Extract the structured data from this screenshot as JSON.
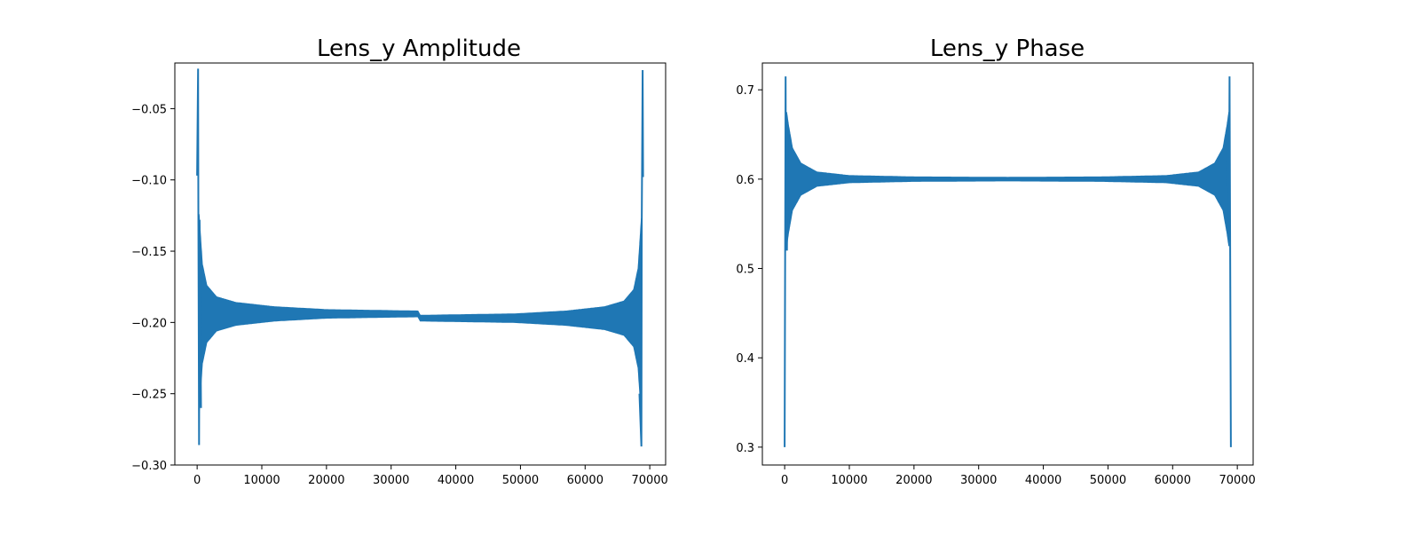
{
  "figure": {
    "panels": [
      {
        "title": "Lens_y Amplitude"
      },
      {
        "title": "Lens_y Phase"
      }
    ]
  },
  "colors": {
    "series": "#1f77b4",
    "axis": "#000000",
    "background": "#ffffff"
  },
  "chart_data": [
    {
      "type": "line",
      "title": "Lens_y Amplitude",
      "xlabel": "",
      "ylabel": "",
      "xlim": [
        -3450,
        72450
      ],
      "ylim": [
        -0.3,
        -0.018
      ],
      "x_ticks": [
        0,
        10000,
        20000,
        30000,
        40000,
        50000,
        60000,
        70000
      ],
      "x_tick_labels": [
        "0",
        "10000",
        "20000",
        "30000",
        "40000",
        "50000",
        "60000",
        "70000"
      ],
      "y_ticks": [
        -0.3,
        -0.25,
        -0.2,
        -0.15,
        -0.1,
        -0.05
      ],
      "y_tick_labels": [
        "−0.30",
        "−0.25",
        "−0.20",
        "−0.15",
        "−0.10",
        "−0.05"
      ],
      "grid": false,
      "legend": "none",
      "series": [
        {
          "x_range": [
            0,
            69000
          ],
          "center_left": -0.194,
          "center_right": -0.197,
          "step_at_x": 34500,
          "envelope_half_width": [
            [
              0,
              0.075
            ],
            [
              300,
              0.07
            ],
            [
              800,
              0.035
            ],
            [
              1500,
              0.02
            ],
            [
              3000,
              0.012
            ],
            [
              6000,
              0.008
            ],
            [
              12000,
              0.005
            ],
            [
              20000,
              0.003
            ],
            [
              34500,
              0.002
            ]
          ],
          "extremes": [
            {
              "x": 150,
              "y": -0.022
            },
            {
              "x": 300,
              "y": -0.286
            },
            {
              "x": 68700,
              "y": -0.287
            },
            {
              "x": 68900,
              "y": -0.023
            }
          ],
          "symmetric": true
        }
      ]
    },
    {
      "type": "line",
      "title": "Lens_y Phase",
      "xlabel": "",
      "ylabel": "",
      "xlim": [
        -3450,
        72450
      ],
      "ylim": [
        0.28,
        0.73
      ],
      "x_ticks": [
        0,
        10000,
        20000,
        30000,
        40000,
        50000,
        60000,
        70000
      ],
      "x_tick_labels": [
        "0",
        "10000",
        "20000",
        "30000",
        "40000",
        "50000",
        "60000",
        "70000"
      ],
      "y_ticks": [
        0.3,
        0.4,
        0.5,
        0.6,
        0.7
      ],
      "y_tick_labels": [
        "0.3",
        "0.4",
        "0.5",
        "0.6",
        "0.7"
      ],
      "grid": false,
      "legend": "none",
      "series": [
        {
          "x_range": [
            0,
            69000
          ],
          "center": 0.6,
          "endpoints": [
            {
              "x": 0,
              "y": 0.3
            },
            {
              "x": 69000,
              "y": 0.3
            }
          ],
          "peak": {
            "x": 150,
            "y": 0.715
          },
          "envelope_half_width": [
            [
              300,
              0.075
            ],
            [
              600,
              0.06
            ],
            [
              1200,
              0.035
            ],
            [
              2500,
              0.018
            ],
            [
              5000,
              0.008
            ],
            [
              10000,
              0.004
            ],
            [
              20000,
              0.0025
            ],
            [
              34500,
              0.002
            ]
          ],
          "symmetric": true
        }
      ]
    }
  ]
}
